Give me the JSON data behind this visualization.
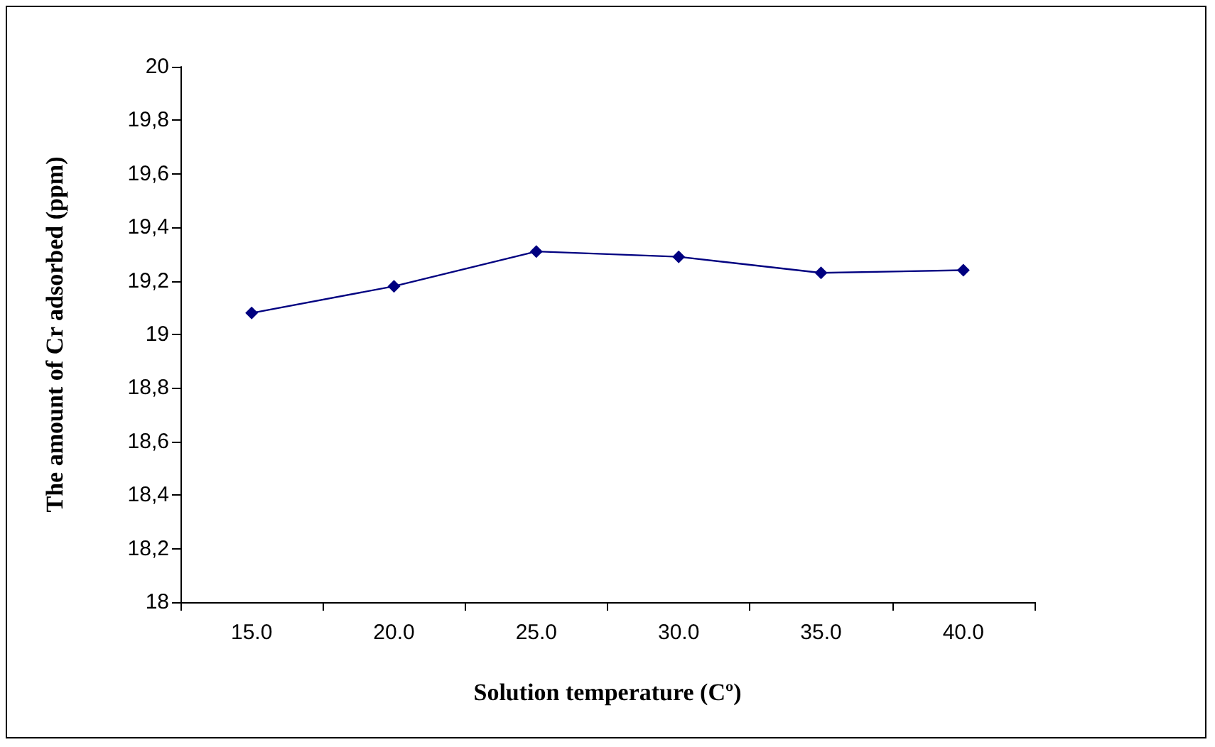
{
  "chart_data": {
    "type": "line",
    "xlabel": "Solution temperature (Cº)",
    "ylabel": "The amount of Cr adsorbed (ppm)",
    "categories": [
      "15.0",
      "20.0",
      "25.0",
      "30.0",
      "35.0",
      "40.0"
    ],
    "series": [
      {
        "color": "#000080",
        "values": [
          19.08,
          19.18,
          19.31,
          19.29,
          19.23,
          19.24
        ]
      }
    ],
    "ylim": [
      18,
      20
    ],
    "yticks": [
      {
        "value": 18,
        "label": "18"
      },
      {
        "value": 18.2,
        "label": "18,2"
      },
      {
        "value": 18.4,
        "label": "18,4"
      },
      {
        "value": 18.6,
        "label": "18,6"
      },
      {
        "value": 18.8,
        "label": "18,8"
      },
      {
        "value": 19,
        "label": "19"
      },
      {
        "value": 19.2,
        "label": "19,2"
      },
      {
        "value": 19.4,
        "label": "19,4"
      },
      {
        "value": 19.6,
        "label": "19,6"
      },
      {
        "value": 19.8,
        "label": "19,8"
      },
      {
        "value": 20,
        "label": "20"
      }
    ],
    "grid": false,
    "marker": "diamond",
    "line_style": "solid"
  }
}
